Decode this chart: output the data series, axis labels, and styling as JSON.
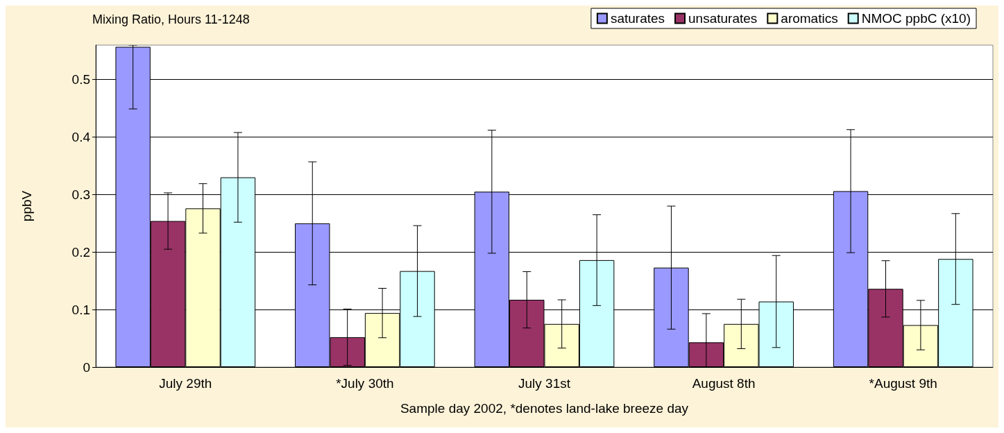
{
  "chart_data": {
    "type": "bar",
    "title": "Mixing Ratio, Hours 11-1248",
    "xlabel": "Sample day 2002, *denotes land-lake breeze day",
    "ylabel": "ppbV",
    "categories": [
      "July 29th",
      "*July 30th",
      "July 31st",
      "August 8th",
      "*August 9th"
    ],
    "series": [
      {
        "name": "saturates",
        "color": "#9999ff",
        "values": [
          0.557,
          0.25,
          0.305,
          0.173,
          0.306
        ],
        "errors": [
          [
            0.449,
            0.56
          ],
          0.107,
          0.107,
          0.107,
          0.107
        ]
      },
      {
        "name": "unsaturates",
        "color": "#993366",
        "values": [
          0.254,
          0.052,
          0.117,
          0.043,
          0.136
        ],
        "errors": [
          0.049,
          0.049,
          0.049,
          [
            0,
            0.093
          ],
          0.049
        ]
      },
      {
        "name": "aromatics",
        "color": "#ffffcc",
        "values": [
          0.276,
          0.094,
          0.075,
          0.075,
          0.073
        ],
        "errors": [
          0.043,
          0.043,
          0.042,
          0.043,
          0.043
        ]
      },
      {
        "name": "NMOC ppbC (x10)",
        "color": "#ccffff",
        "values": [
          0.33,
          0.167,
          0.186,
          0.114,
          0.188
        ],
        "errors": [
          0.078,
          0.079,
          0.079,
          0.08,
          0.079
        ]
      }
    ],
    "ylim": [
      0,
      0.56
    ],
    "yticks": [
      0,
      0.1,
      0.2,
      0.3,
      0.4,
      0.5
    ],
    "grid": "y",
    "legend": "top right"
  }
}
